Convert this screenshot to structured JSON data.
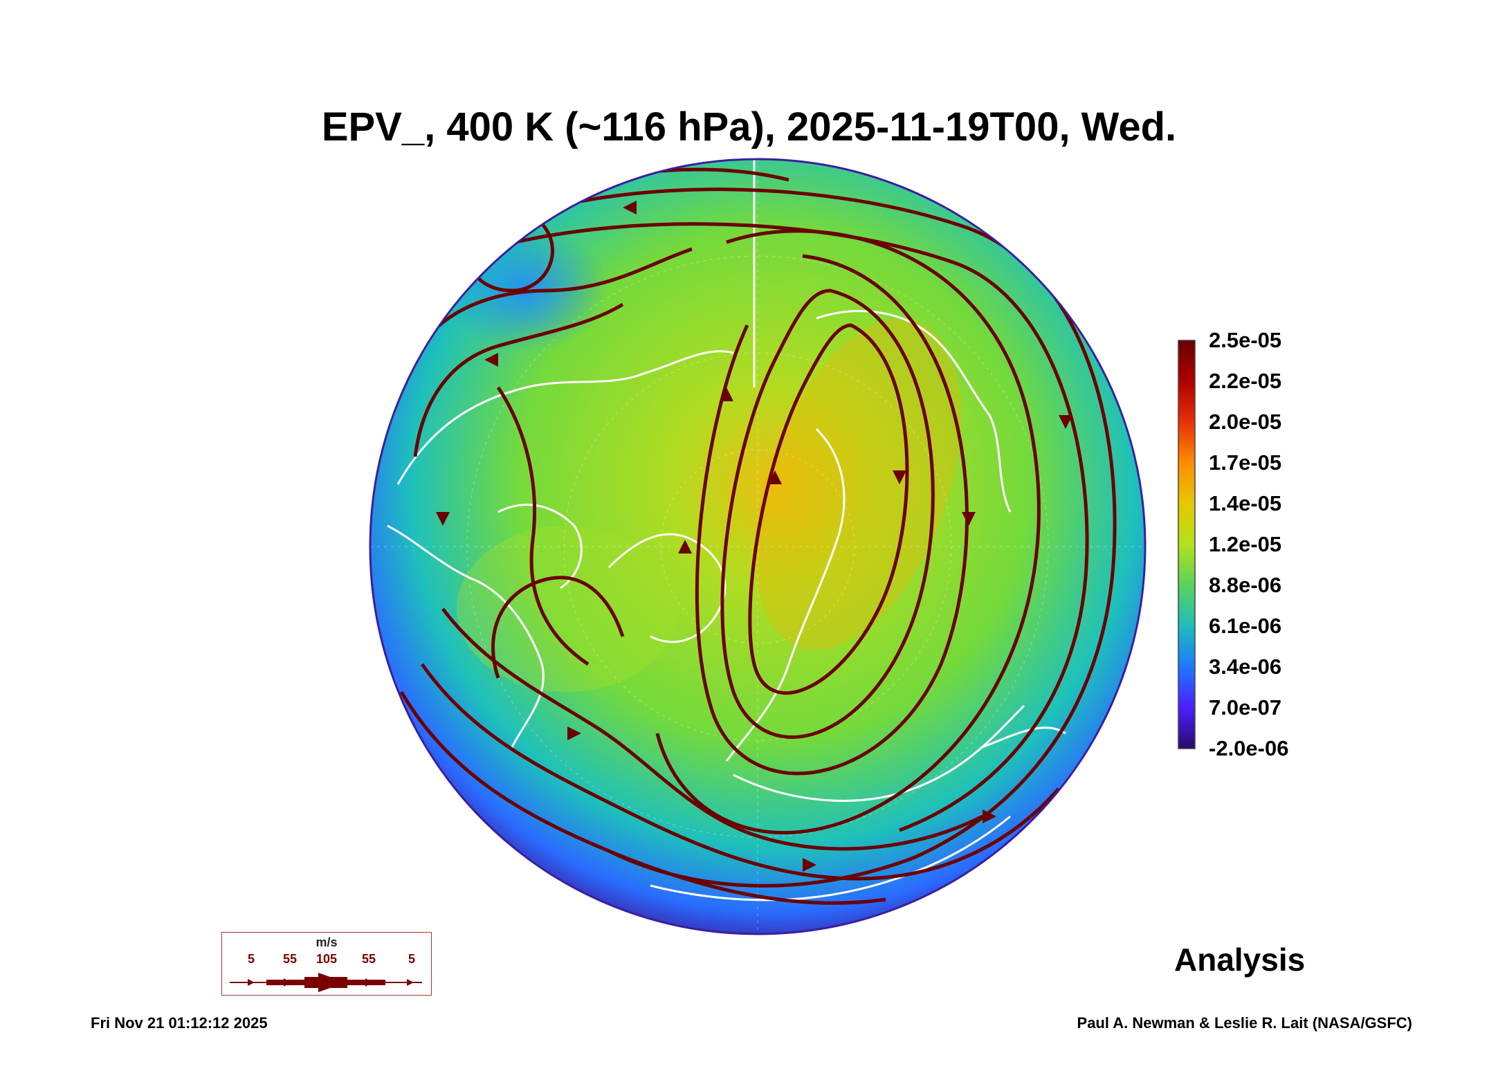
{
  "title": "EPV_, 400 K (~116 hPa), 2025-11-19T00, Wed.",
  "colorbar": {
    "labels": [
      "2.5e-05",
      "2.2e-05",
      "2.0e-05",
      "1.7e-05",
      "1.4e-05",
      "1.2e-05",
      "8.8e-06",
      "6.1e-06",
      "3.4e-06",
      "7.0e-07",
      "-2.0e-06"
    ],
    "colors": [
      "#6b0000",
      "#b00000",
      "#e8300a",
      "#ff8c00",
      "#e6c800",
      "#b4e01e",
      "#5ad25a",
      "#1ebcbc",
      "#1e78ff",
      "#4b1eff",
      "#2a0a6b"
    ]
  },
  "map": {
    "field_colors": {
      "high": "#f0b400",
      "mid": "#9ee02a",
      "low": "#1ec0c0",
      "edge": "#2a5aff",
      "rim": "#3a1ea0"
    },
    "streamline_color": "#6b0000",
    "coastline_color": "#ffffff"
  },
  "wind_legend": {
    "unit": "m/s",
    "speeds": [
      "5",
      "55",
      "105",
      "55",
      "5"
    ]
  },
  "analysis_label": "Analysis",
  "timestamp": "Fri Nov 21 01:12:12 2025",
  "credit": "Paul A. Newman & Leslie R. Lait (NASA/GSFC)"
}
